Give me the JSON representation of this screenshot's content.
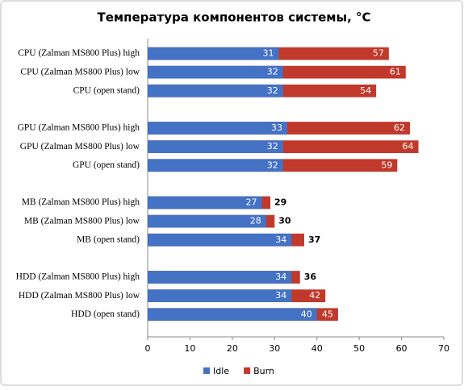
{
  "chart_data": {
    "type": "bar",
    "orientation": "horizontal",
    "overlap": true,
    "title": "Температура компонентов системы, °C",
    "categories": [
      "CPU (Zalman  MS800 Plus) high",
      "CPU (Zalman  MS800 Plus) low",
      "CPU (open stand)",
      "GPU  (Zalman  MS800 Plus) high",
      "GPU  (Zalman  MS800 Plus) low",
      "GPU  (open stand)",
      "MB (Zalman MS800 Plus) high",
      "MB (Zalman MS800 Plus) low",
      "MB (open stand)",
      "HDD (Zalman  MS800 Plus) high",
      "HDD (Zalman  MS800 Plus) low",
      "HDD (open stand)"
    ],
    "series": [
      {
        "name": "Idle",
        "color": "#4472c4",
        "values": [
          31,
          32,
          32,
          33,
          32,
          32,
          27,
          28,
          34,
          34,
          34,
          40
        ]
      },
      {
        "name": "Burn",
        "color": "#c0392b",
        "values": [
          57,
          61,
          54,
          62,
          64,
          59,
          29,
          30,
          37,
          36,
          42,
          45
        ]
      }
    ],
    "xlim": [
      0,
      70
    ],
    "xticks": [
      0,
      10,
      20,
      30,
      40,
      50,
      60,
      70
    ],
    "grid": false,
    "legend": "bottom"
  }
}
